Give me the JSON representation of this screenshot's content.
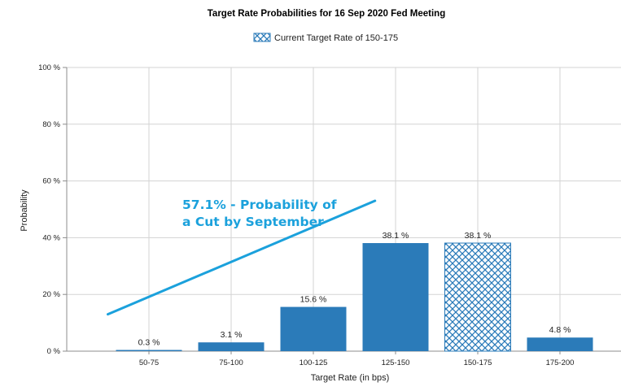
{
  "colors": {
    "bar": "#2b7bb9",
    "hatch_line": "#2b7bb9",
    "annotation": "#1ba1dc",
    "grid": "#d3d3d3",
    "axis": "#8c8c8c"
  },
  "chart_data": {
    "type": "bar",
    "title": "Target Rate Probabilities for 16 Sep 2020 Fed Meeting",
    "legend": {
      "label": "Current Target Rate of 150-175",
      "placement": "top-center"
    },
    "xlabel": "Target Rate (in bps)",
    "ylabel": "Probability",
    "ylim": [
      0,
      100
    ],
    "yticks": [
      {
        "value": 0,
        "label": "0 %"
      },
      {
        "value": 20,
        "label": "20 %"
      },
      {
        "value": 40,
        "label": "40 %"
      },
      {
        "value": 60,
        "label": "60 %"
      },
      {
        "value": 80,
        "label": "80 %"
      },
      {
        "value": 100,
        "label": "100 %"
      }
    ],
    "categories": [
      "50-75",
      "75-100",
      "100-125",
      "125-150",
      "150-175",
      "175-200"
    ],
    "values": [
      0.3,
      3.1,
      15.6,
      38.1,
      38.1,
      4.8
    ],
    "value_labels": [
      "0.3 %",
      "3.1 %",
      "15.6 %",
      "38.1 %",
      "38.1 %",
      "4.8 %"
    ],
    "highlighted_category": "150-175",
    "grid": true,
    "annotation": {
      "lines": [
        "57.1% - Probability of",
        "a Cut by September"
      ],
      "trend_line": {
        "start": [
          -0.5,
          13
        ],
        "end": [
          2.75,
          53
        ]
      }
    }
  }
}
